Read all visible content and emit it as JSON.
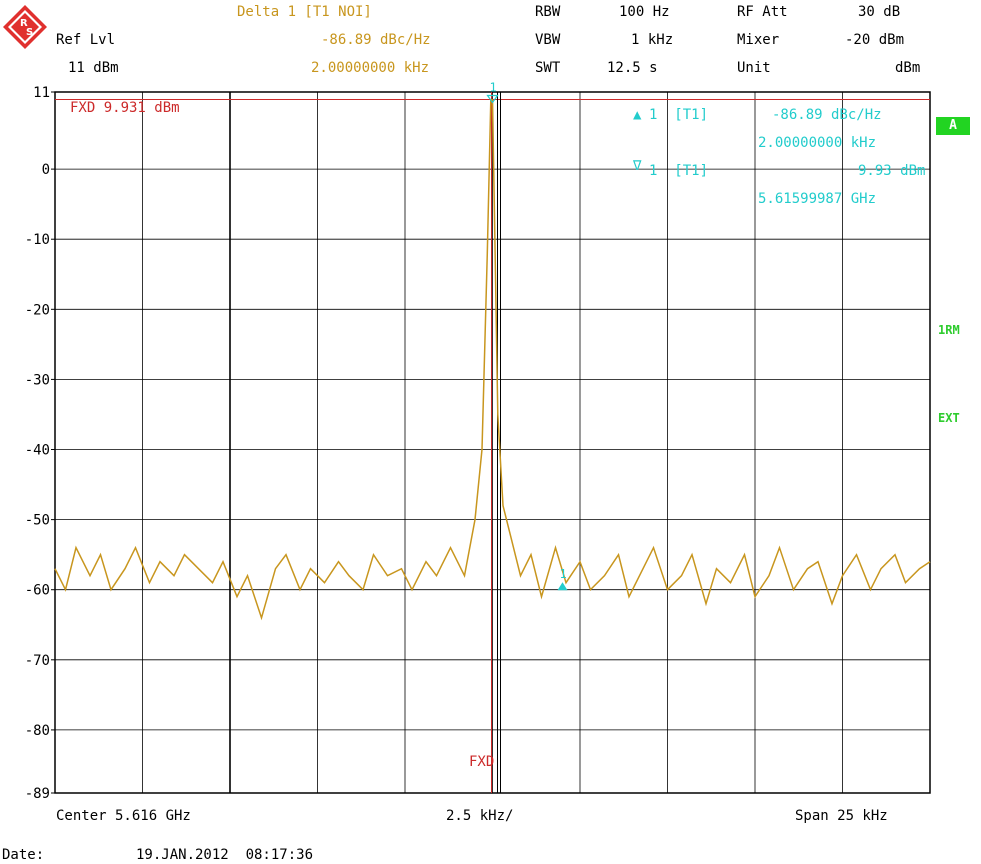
{
  "header": {
    "delta_label": "Delta 1 [T1 NOI]",
    "delta_value": "-86.89 dBc/Hz",
    "delta_freq": "2.00000000 kHz",
    "ref_lvl_label": "Ref Lvl",
    "ref_lvl_value": "11 dBm",
    "rbw_label": "RBW",
    "rbw_value": "100 Hz",
    "vbw_label": "VBW",
    "vbw_value": "1 kHz",
    "swt_label": "SWT",
    "swt_value": "12.5 s",
    "rfatt_label": "RF Att",
    "rfatt_value": "30 dB",
    "mixer_label": "Mixer",
    "mixer_value": "-20 dBm",
    "unit_label": "Unit",
    "unit_value": "dBm"
  },
  "markers": {
    "m1_symbol": "▲",
    "m1_label": "1  [T1]",
    "m1_value": "-86.89 dBc/Hz",
    "m1_freq": "2.00000000 kHz",
    "m2_symbol": "∇",
    "m2_label": "1  [T1]",
    "m2_value": "9.93 dBm",
    "m2_freq": "5.61599987 GHz",
    "fxd_text": "FXD 9.931 dBm",
    "fxd_bottom": "FXD",
    "peak_marker_label": "1",
    "delta_marker_label": "1"
  },
  "side_badges": {
    "a": "A",
    "trace_mode": "1RM",
    "ext": "EXT"
  },
  "footer": {
    "center": "Center 5.616 GHz",
    "div": "2.5 kHz/",
    "span": "Span 25 kHz",
    "date_label": "Date:",
    "date_value": "19.JAN.2012  08:17:36"
  },
  "colors": {
    "trace": "#c8961e",
    "marker": "#22cccc",
    "fxd_line": "#cc2a2a",
    "grid": "#000000",
    "status_green": "#2ecc2e"
  },
  "chart_data": {
    "type": "line",
    "title": "",
    "xlabel": "",
    "ylabel": "",
    "x_unit": "kHz offset from center",
    "xlim": [
      -12.5,
      12.5
    ],
    "ylim": [
      -89,
      11
    ],
    "ytick_labels": [
      "11",
      "0",
      "-10",
      "-20",
      "-30",
      "-40",
      "-50",
      "-60",
      "-70",
      "-80",
      "-89"
    ],
    "grid": true,
    "series": [
      {
        "x": [
          -12.5,
          -12.2,
          -11.9,
          -11.5,
          -11.2,
          -10.9,
          -10.5,
          -10.2,
          -9.8,
          -9.5,
          -9.1,
          -8.8,
          -8.4,
          -8.0,
          -7.7,
          -7.3,
          -7.0,
          -6.6,
          -6.2,
          -5.9,
          -5.5,
          -5.2,
          -4.8,
          -4.4,
          -4.1,
          -3.7,
          -3.4,
          -3.0,
          -2.6,
          -2.3,
          -1.9,
          -1.6,
          -1.2,
          -0.8,
          -0.5,
          -0.3,
          -0.15,
          -0.05,
          0.0,
          0.05,
          0.15,
          0.3,
          0.5,
          0.8,
          1.1,
          1.4,
          1.8,
          2.1,
          2.5,
          2.8,
          3.2,
          3.6,
          3.9,
          4.3,
          4.6,
          5.0,
          5.4,
          5.7,
          6.1,
          6.4,
          6.8,
          7.2,
          7.5,
          7.9,
          8.2,
          8.6,
          9.0,
          9.3,
          9.7,
          10.0,
          10.4,
          10.8,
          11.1,
          11.5,
          11.8,
          12.2,
          12.5
        ],
        "y": [
          -57,
          -60,
          -54,
          -58,
          -55,
          -60,
          -57,
          -54,
          -59,
          -56,
          -58,
          -55,
          -57,
          -59,
          -56,
          -61,
          -58,
          -64,
          -57,
          -55,
          -60,
          -57,
          -59,
          -56,
          -58,
          -60,
          -55,
          -58,
          -57,
          -60,
          -56,
          -58,
          -54,
          -58,
          -50,
          -40,
          -12,
          9.9,
          9.9,
          -5,
          -35,
          -48,
          -52,
          -58,
          -55,
          -61,
          -54,
          -59,
          -56,
          -60,
          -58,
          -55,
          -61,
          -57,
          -54,
          -60,
          -58,
          -55,
          -62,
          -57,
          -59,
          -55,
          -61,
          -58,
          -54,
          -60,
          -57,
          -56,
          -62,
          -58,
          -55,
          -60,
          -57,
          -55,
          -59,
          -57,
          -56
        ]
      }
    ],
    "reference_line_dbm": 9.931,
    "markers": [
      {
        "name": "1 [T1]",
        "x": 0.0,
        "y": 9.93
      },
      {
        "name": "delta 1",
        "x": 2.0,
        "y": -59.5
      }
    ]
  }
}
